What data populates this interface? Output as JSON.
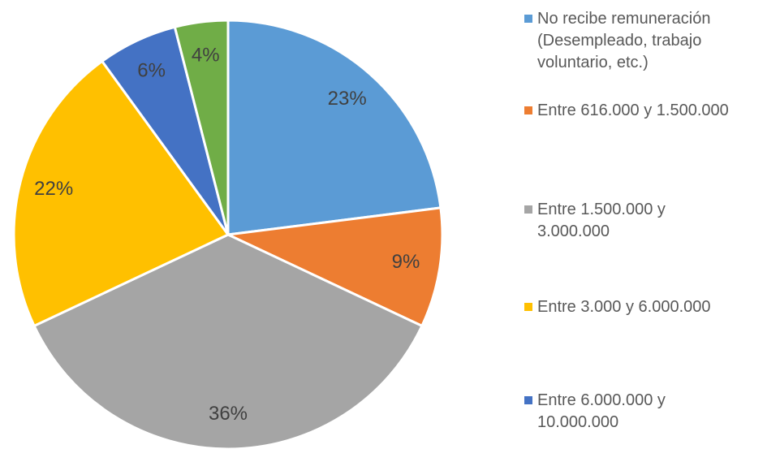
{
  "chart_data": {
    "type": "pie",
    "categories": [
      "No recibe remuneración (Desempleado, trabajo voluntario, etc.)",
      "Entre 616.000 y 1.500.000",
      "Entre 1.500.000 y 3.000.000",
      "Entre 3.000 y 6.000.000",
      "Entre 6.000.000 y 10.000.000",
      null
    ],
    "values": [
      23,
      9,
      36,
      22,
      6,
      4
    ],
    "value_labels": [
      "23%",
      "9%",
      "36%",
      "22%",
      "6%",
      "4%"
    ],
    "colors": [
      "#5b9bd5",
      "#ed7d31",
      "#a5a5a5",
      "#ffc000",
      "#4472c4",
      "#70ad47"
    ],
    "legend": "right"
  }
}
